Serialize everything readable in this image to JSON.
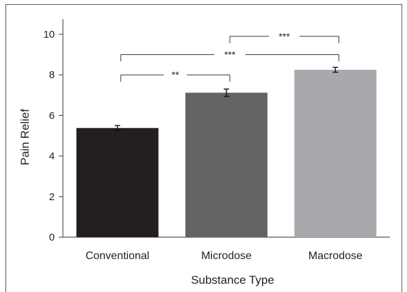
{
  "chart_data": {
    "type": "bar",
    "xlabel": "Substance Type",
    "ylabel": "Pain Relief",
    "ylim": [
      0,
      10
    ],
    "yticks": [
      "0",
      "2",
      "4",
      "6",
      "8",
      "10"
    ],
    "categories": [
      "Conventional",
      "Microdose",
      "Macrodose"
    ],
    "values": [
      5.38,
      7.12,
      8.25
    ],
    "error": [
      0.12,
      0.18,
      0.12
    ],
    "colors": [
      "#231f20",
      "#636466",
      "#a7a9ac"
    ],
    "significance": [
      {
        "from": "Conventional",
        "to": "Microdose",
        "label": "**",
        "level": 8.0
      },
      {
        "from": "Conventional",
        "to": "Macrodose",
        "label": "***",
        "level": 9.0
      },
      {
        "from": "Microdose",
        "to": "Macrodose",
        "label": "***",
        "level": 9.9
      }
    ],
    "grid": false
  }
}
